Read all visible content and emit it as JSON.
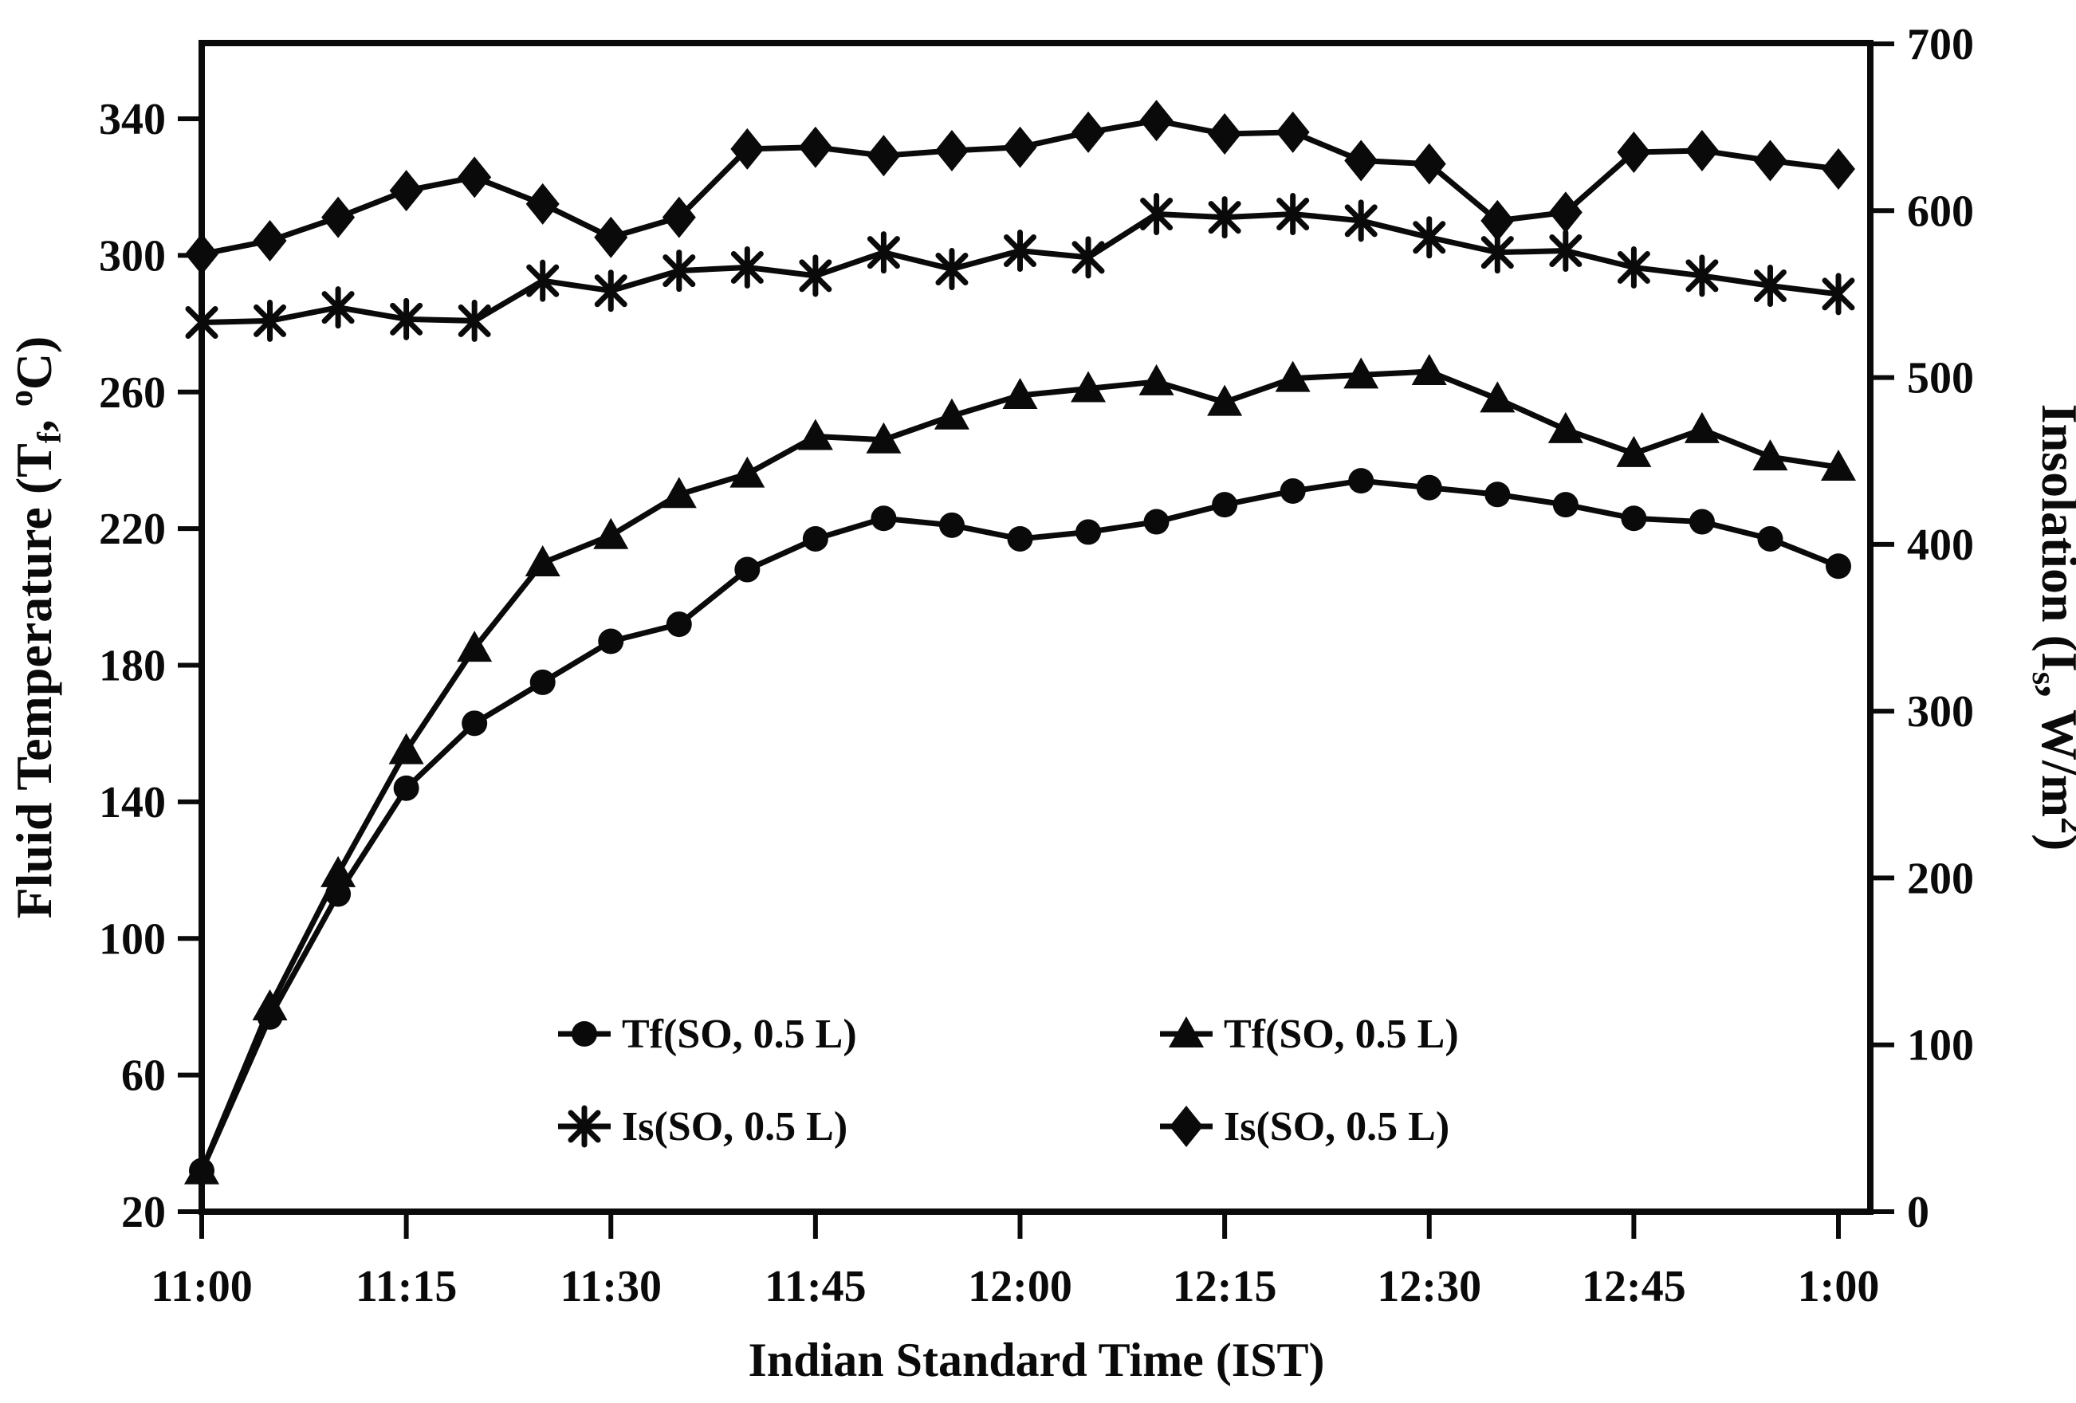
{
  "figure": {
    "background": "#ffffff",
    "ink": "#0a0a0a"
  },
  "chart_data": {
    "type": "line",
    "x": [
      "11:00",
      "11:05",
      "11:10",
      "11:15",
      "11:20",
      "11:25",
      "11:30",
      "11:35",
      "11:40",
      "11:45",
      "11:50",
      "11:55",
      "12:00",
      "12:05",
      "12:10",
      "12:15",
      "12:20",
      "12:25",
      "12:30",
      "12:35",
      "12:40",
      "12:45",
      "12:50",
      "12:55",
      "1:00"
    ],
    "x_tick_labels": [
      "11:00",
      "11:15",
      "11:30",
      "11:45",
      "12:00",
      "12:15",
      "12:30",
      "12:45",
      "1:00"
    ],
    "xlabel": "Indian Standard Time (IST)",
    "grid": false,
    "left_axis": {
      "label": "Fluid Temperature (Tf, oC)",
      "label_parts": [
        {
          "t": "Fluid Temperature (T"
        },
        {
          "t": "f",
          "style": "sub"
        },
        {
          "t": ", "
        },
        {
          "t": "o",
          "style": "sup"
        },
        {
          "t": "C)"
        }
      ],
      "ticks": [
        20,
        60,
        100,
        140,
        180,
        220,
        260,
        300,
        340
      ],
      "range": [
        20,
        340
      ]
    },
    "right_axis": {
      "label": "Insolation (Is, W/m2)",
      "label_parts": [
        {
          "t": "Insolation (I"
        },
        {
          "t": "s",
          "style": "sub"
        },
        {
          "t": ", W/m"
        },
        {
          "t": "2",
          "style": "sup"
        },
        {
          "t": ")"
        }
      ],
      "ticks": [
        0,
        100,
        200,
        300,
        400,
        500,
        600,
        700
      ],
      "range": [
        0,
        700
      ]
    },
    "series": [
      {
        "name": "Tf(SO, 0.5 L)",
        "marker": "circle",
        "axis": "left",
        "values": [
          32,
          77,
          113,
          144,
          163,
          175,
          187,
          192,
          208,
          217,
          223,
          221,
          217,
          219,
          222,
          227,
          231,
          234,
          232,
          230,
          227,
          223,
          222,
          217,
          209
        ]
      },
      {
        "name": "Tf(SO, 0.5 L)",
        "marker": "triangle",
        "axis": "left",
        "values": [
          32,
          80,
          119,
          155,
          185,
          210,
          218,
          230,
          236,
          247,
          246,
          253,
          259,
          261,
          263,
          257,
          264,
          265,
          266,
          258,
          249,
          242,
          249,
          241,
          238
        ]
      },
      {
        "name": "Is(SO, 0.5 L)",
        "marker": "asterisk",
        "axis": "right",
        "values": [
          533,
          534,
          542,
          535,
          534,
          558,
          552,
          564,
          566,
          561,
          575,
          565,
          576,
          572,
          598,
          596,
          598,
          594,
          584,
          575,
          576,
          566,
          561,
          555,
          550
        ]
      },
      {
        "name": "Is(SO, 0.5 L)",
        "marker": "diamond",
        "axis": "right",
        "values": [
          574,
          582,
          596,
          612,
          620,
          604,
          584,
          596,
          637,
          638,
          633,
          636,
          638,
          647,
          654,
          646,
          647,
          630,
          628,
          594,
          599,
          635,
          636,
          630,
          625
        ]
      }
    ],
    "legend": {
      "position": "inside-bottom",
      "entries": [
        {
          "label": "Tf(SO, 0.5 L)",
          "marker": "circle"
        },
        {
          "label": "Tf(SO, 0.5 L)",
          "marker": "triangle"
        },
        {
          "label": "Is(SO, 0.5 L)",
          "marker": "asterisk"
        },
        {
          "label": "Is(SO, 0.5 L)",
          "marker": "diamond"
        }
      ]
    }
  }
}
